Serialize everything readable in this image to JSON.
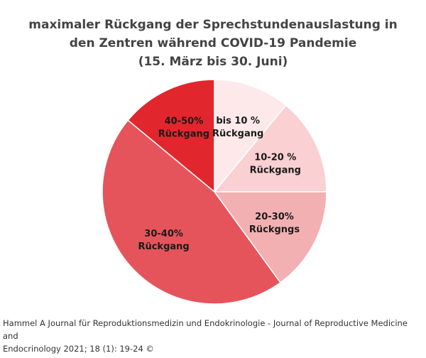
{
  "chart_data": {
    "type": "pie",
    "title_lines": [
      "maximaler Rückgang der Sprechstundenauslastung in",
      "den Zentren während  COVID-19 Pandemie",
      "(15. März bis 30. Juni)"
    ],
    "slices": [
      {
        "label_lines": [
          "bis 10 %",
          "Rückgang"
        ],
        "value": 11,
        "color": "#fde9ea"
      },
      {
        "label_lines": [
          "10-20 %",
          "Rückgang"
        ],
        "value": 14,
        "color": "#fad0d2"
      },
      {
        "label_lines": [
          "20-30%",
          "Rückgngs"
        ],
        "value": 15,
        "color": "#f3b0b2"
      },
      {
        "label_lines": [
          "30-40%",
          "Rückgang"
        ],
        "value": 46,
        "color": "#e6545b"
      },
      {
        "label_lines": [
          "40-50%",
          "Rückgang"
        ],
        "value": 14,
        "color": "#e2262d"
      }
    ],
    "legend": "none",
    "grid": false
  },
  "footer": {
    "line1": "Hammel A Journal für Reproduktionsmedizin und Endokrinologie - Journal of Reproductive Medicine and",
    "line2": "Endocrinology 2021; 18 (1): 19-24 ©"
  }
}
